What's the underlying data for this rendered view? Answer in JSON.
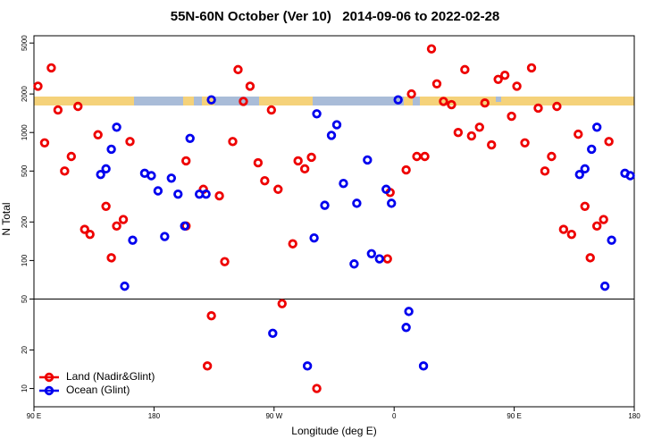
{
  "chart_data": {
    "type": "scatter",
    "title": "55N-60N October (Ver 10)   2014-09-06 to 2022-02-28",
    "x_label": "Longitude (deg E)",
    "y_label": "N Total",
    "xlim": [
      90,
      540
    ],
    "ylim": [
      7.2,
      5700
    ],
    "log_y": true,
    "panel_break": 50,
    "legend": "bottomleft",
    "xticks": [
      {
        "value": 90,
        "label": "90 E"
      },
      180,
      {
        "value": 270,
        "label": "90 W"
      },
      {
        "value": 360,
        "label": "0"
      },
      {
        "value": 450,
        "label": "90 E"
      },
      {
        "value": 540,
        "label": "180"
      }
    ],
    "yticks": [
      10,
      20,
      50,
      100,
      200,
      500,
      1000,
      2000,
      5000
    ],
    "series": [
      {
        "name": "Land (Nadir&Glint)",
        "color": "#ee0000",
        "x": [
          93,
          98,
          103,
          108,
          113,
          118,
          123,
          128,
          132,
          138,
          144,
          148,
          152,
          157,
          162,
          204,
          204,
          217,
          223,
          229,
          233,
          239,
          243,
          247,
          252,
          258,
          263,
          268,
          273,
          276,
          284,
          288,
          293,
          298,
          302,
          355,
          357,
          369,
          373,
          377,
          383,
          388,
          392,
          397,
          403,
          408,
          413,
          418,
          424,
          428,
          433,
          438,
          443,
          448,
          452,
          458,
          463,
          468,
          473,
          478,
          482,
          487,
          493,
          498,
          503,
          507,
          512,
          517,
          521,
          220
        ],
        "values": [
          2300,
          830,
          3200,
          1500,
          500,
          650,
          1600,
          175,
          160,
          960,
          265,
          105,
          186,
          209,
          850,
          600,
          186,
          360,
          37,
          320,
          98,
          850,
          3100,
          1750,
          2300,
          580,
          420,
          1500,
          360,
          46,
          135,
          600,
          520,
          640,
          10,
          103,
          340,
          510,
          2000,
          650,
          650,
          4500,
          2400,
          1750,
          1650,
          1000,
          3100,
          940,
          1100,
          1700,
          800,
          2600,
          2800,
          1340,
          2300,
          830,
          3200,
          1550,
          500,
          650,
          1600,
          175,
          160,
          970,
          265,
          105,
          186,
          209,
          850,
          15
        ]
      },
      {
        "name": "Ocean (Glint)",
        "color": "#0000ee",
        "x": [
          140,
          144,
          148,
          152,
          158,
          164,
          173,
          178,
          183,
          188,
          193,
          198,
          203,
          207,
          214,
          219,
          223,
          269,
          295,
          300,
          302,
          308,
          313,
          317,
          322,
          330,
          332,
          340,
          343,
          349,
          354,
          358,
          363,
          369,
          371,
          382,
          499,
          503,
          508,
          512,
          518,
          523,
          533,
          537
        ],
        "values": [
          470,
          520,
          740,
          1100,
          63,
          144,
          480,
          460,
          350,
          154,
          440,
          330,
          186,
          900,
          330,
          330,
          1800,
          27,
          15,
          150,
          1400,
          270,
          950,
          1150,
          400,
          94,
          280,
          610,
          113,
          103,
          360,
          280,
          1800,
          30,
          40,
          15,
          470,
          520,
          740,
          1100,
          63,
          144,
          480,
          460
        ]
      }
    ]
  }
}
